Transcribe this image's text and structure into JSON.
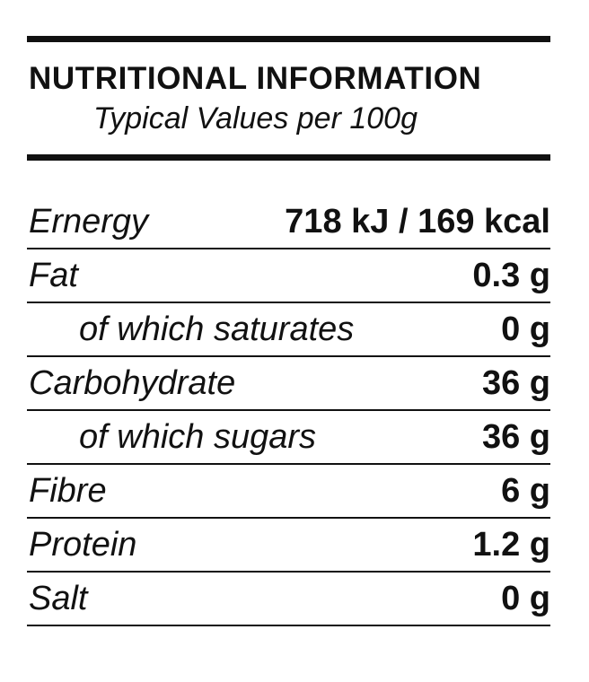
{
  "header": {
    "title": "NUTRITIONAL INFORMATION",
    "subtitle": "Typical Values per 100g"
  },
  "table": {
    "rows": [
      [
        "Ernergy",
        "718 kJ / 169 kcal"
      ],
      [
        "Fat",
        "0.3 g"
      ],
      [
        "of which saturates",
        "0 g"
      ],
      [
        "Carbohydrate",
        "36 g"
      ],
      [
        "of which sugars",
        "36 g"
      ],
      [
        "Fibre",
        "6 g"
      ],
      [
        "Protein",
        "1.2 g"
      ],
      [
        "Salt",
        "0 g"
      ]
    ]
  }
}
